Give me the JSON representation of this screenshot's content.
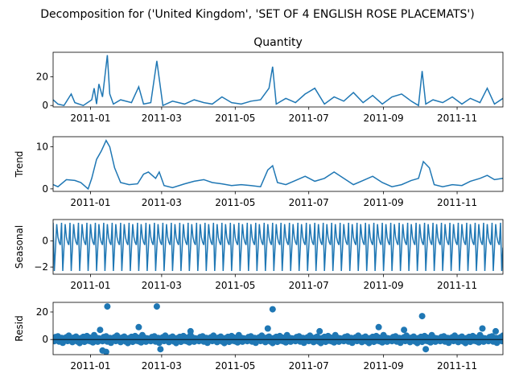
{
  "figure": {
    "suptitle": "Decomposition for ('United Kingdom', 'SET OF 4 ENGLISH ROSE PLACEMATS')"
  },
  "chart_data": [
    {
      "type": "line",
      "title": "Quantity",
      "ylabel": "",
      "ylim": [
        -1,
        37
      ],
      "yticks": [
        0,
        20
      ],
      "x_range": [
        "2010-12-01",
        "2011-12-09"
      ],
      "xticks": [
        "2011-01",
        "2011-03",
        "2011-05",
        "2011-07",
        "2011-09",
        "2011-11"
      ],
      "grid": false,
      "color": "#1f77b4",
      "series": [
        {
          "x": [
            "2010-12-01",
            "2010-12-05",
            "2010-12-10",
            "2010-12-16",
            "2010-12-19",
            "2010-12-26",
            "2011-01-02",
            "2011-01-04",
            "2011-01-06",
            "2011-01-08",
            "2011-01-11",
            "2011-01-15",
            "2011-01-17",
            "2011-01-20",
            "2011-01-26",
            "2011-02-04",
            "2011-02-10",
            "2011-02-14",
            "2011-02-20",
            "2011-02-25",
            "2011-03-02",
            "2011-03-10",
            "2011-03-20",
            "2011-03-28",
            "2011-04-05",
            "2011-04-12",
            "2011-04-20",
            "2011-04-28",
            "2011-05-06",
            "2011-05-14",
            "2011-05-22",
            "2011-05-29",
            "2011-06-01",
            "2011-06-04",
            "2011-06-12",
            "2011-06-20",
            "2011-06-28",
            "2011-07-06",
            "2011-07-14",
            "2011-07-22",
            "2011-07-30",
            "2011-08-07",
            "2011-08-15",
            "2011-08-23",
            "2011-08-31",
            "2011-09-08",
            "2011-09-16",
            "2011-09-24",
            "2011-09-30",
            "2011-10-03",
            "2011-10-06",
            "2011-10-12",
            "2011-10-20",
            "2011-10-28",
            "2011-11-05",
            "2011-11-12",
            "2011-11-20",
            "2011-11-26",
            "2011-12-02",
            "2011-12-09"
          ],
          "values": [
            4,
            1,
            0,
            8,
            2,
            0,
            4,
            12,
            1,
            15,
            6,
            35,
            8,
            1,
            4,
            2,
            13,
            1,
            2,
            31,
            0,
            3,
            1,
            4,
            2,
            1,
            6,
            2,
            1,
            3,
            4,
            12,
            27,
            1,
            5,
            2,
            8,
            12,
            1,
            6,
            3,
            9,
            2,
            7,
            1,
            6,
            8,
            3,
            0,
            24,
            1,
            4,
            2,
            6,
            1,
            5,
            2,
            12,
            1,
            5
          ]
        }
      ]
    },
    {
      "type": "line",
      "title": "",
      "ylabel": "Trend",
      "ylim": [
        -0.6,
        12.4
      ],
      "yticks": [
        0,
        10
      ],
      "x_range": [
        "2010-12-01",
        "2011-12-09"
      ],
      "xticks": [
        "2011-01",
        "2011-03",
        "2011-05",
        "2011-07",
        "2011-09",
        "2011-11"
      ],
      "grid": false,
      "color": "#1f77b4",
      "series": [
        {
          "x": [
            "2010-12-01",
            "2010-12-05",
            "2010-12-12",
            "2010-12-19",
            "2010-12-24",
            "2010-12-30",
            "2011-01-02",
            "2011-01-06",
            "2011-01-10",
            "2011-01-14",
            "2011-01-17",
            "2011-01-21",
            "2011-01-26",
            "2011-02-02",
            "2011-02-09",
            "2011-02-14",
            "2011-02-18",
            "2011-02-24",
            "2011-02-27",
            "2011-03-03",
            "2011-03-10",
            "2011-03-20",
            "2011-03-28",
            "2011-04-05",
            "2011-04-12",
            "2011-04-20",
            "2011-04-28",
            "2011-05-06",
            "2011-05-14",
            "2011-05-22",
            "2011-05-28",
            "2011-06-01",
            "2011-06-05",
            "2011-06-12",
            "2011-06-20",
            "2011-06-28",
            "2011-07-06",
            "2011-07-14",
            "2011-07-22",
            "2011-07-30",
            "2011-08-07",
            "2011-08-15",
            "2011-08-23",
            "2011-08-31",
            "2011-09-08",
            "2011-09-16",
            "2011-09-24",
            "2011-09-30",
            "2011-10-04",
            "2011-10-09",
            "2011-10-13",
            "2011-10-20",
            "2011-10-28",
            "2011-11-05",
            "2011-11-12",
            "2011-11-20",
            "2011-11-26",
            "2011-12-02",
            "2011-12-09"
          ],
          "values": [
            1.0,
            0.5,
            2.2,
            2.0,
            1.5,
            0.0,
            2.5,
            7.0,
            9.0,
            11.5,
            10.0,
            5.0,
            1.5,
            1.0,
            1.2,
            3.5,
            4.0,
            2.5,
            4.0,
            0.8,
            0.3,
            1.2,
            1.8,
            2.2,
            1.5,
            1.2,
            0.8,
            1.0,
            0.8,
            0.5,
            4.5,
            5.5,
            1.5,
            1.0,
            2.0,
            3.0,
            1.8,
            2.5,
            4.0,
            2.5,
            1.0,
            2.0,
            3.0,
            1.5,
            0.5,
            1.0,
            2.0,
            2.5,
            6.5,
            5.0,
            1.0,
            0.5,
            1.0,
            0.8,
            1.8,
            2.5,
            3.2,
            2.2,
            2.5
          ]
        }
      ]
    },
    {
      "type": "line",
      "title": "",
      "ylabel": "Seasonal",
      "ylim": [
        -2.55,
        1.65
      ],
      "yticks": [
        -2,
        0
      ],
      "x_range": [
        "2010-12-01",
        "2011-12-09"
      ],
      "xticks": [
        "2011-01",
        "2011-03",
        "2011-05",
        "2011-07",
        "2011-09",
        "2011-11"
      ],
      "grid": false,
      "color": "#1f77b4",
      "period_days": 7,
      "pattern": [
        1.4,
        -2.3,
        -0.5,
        1.3,
        0.3,
        -0.1,
        -0.3
      ],
      "note_series": "weekly seasonal component repeating the pattern above"
    },
    {
      "type": "scatter",
      "title": "",
      "ylabel": "Resid",
      "ylim": [
        -11,
        27
      ],
      "yticks": [
        0,
        20
      ],
      "x_range": [
        "2010-12-01",
        "2011-12-09"
      ],
      "xticks": [
        "2011-01",
        "2011-03",
        "2011-05",
        "2011-07",
        "2011-09",
        "2011-11"
      ],
      "grid": false,
      "color": "#1f77b4",
      "base_residuals": [
        0.5,
        -1.2,
        1.8,
        -0.6,
        2.3,
        -1.5,
        0.2,
        1.1,
        -2.4,
        0.9,
        -0.3,
        1.6,
        -1.1,
        2.8,
        -0.8,
        0.4,
        -1.9,
        1.3,
        -0.5,
        2.1,
        -1.4,
        0.7,
        -2.6,
        1.0,
        -0.2,
        1.9,
        -1.7,
        0.3,
        2.5,
        -0.9,
        1.4,
        -1.3,
        0.6,
        -2.1,
        3.2,
        -0.4,
        1.2,
        -1.6,
        0.8,
        -0.7
      ],
      "outliers": [
        {
          "x": "2011-01-15",
          "y": 24
        },
        {
          "x": "2011-02-25",
          "y": 24
        },
        {
          "x": "2011-06-01",
          "y": 22
        },
        {
          "x": "2011-10-03",
          "y": 17
        },
        {
          "x": "2011-02-10",
          "y": 9
        },
        {
          "x": "2011-01-09",
          "y": 7
        },
        {
          "x": "2011-01-14",
          "y": -9
        },
        {
          "x": "2011-01-11",
          "y": -8
        },
        {
          "x": "2011-02-28",
          "y": -7
        },
        {
          "x": "2011-10-06",
          "y": -7
        },
        {
          "x": "2011-05-28",
          "y": 8
        },
        {
          "x": "2011-09-18",
          "y": 7
        },
        {
          "x": "2011-11-22",
          "y": 8
        },
        {
          "x": "2011-08-28",
          "y": 9
        },
        {
          "x": "2011-12-03",
          "y": 6
        },
        {
          "x": "2011-03-25",
          "y": 6
        },
        {
          "x": "2011-07-10",
          "y": 6
        }
      ]
    }
  ]
}
